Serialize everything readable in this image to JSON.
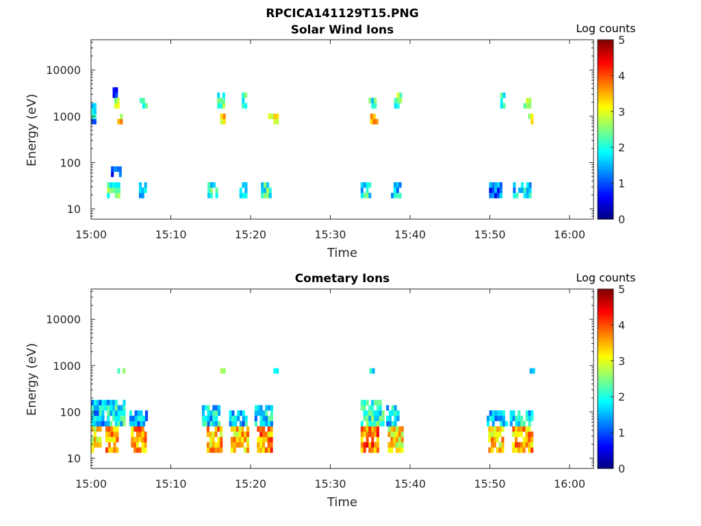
{
  "figure": {
    "suptitle": "RPCICA141129T15.PNG"
  },
  "chart_data": [
    {
      "type": "heatmap",
      "title": "Solar Wind Ions",
      "xlabel": "Time",
      "ylabel": "Energy (eV)",
      "x_ticks": [
        "15:00",
        "15:10",
        "15:20",
        "15:30",
        "15:40",
        "15:50",
        "16:00"
      ],
      "x_tick_minutes": [
        0,
        10,
        20,
        30,
        40,
        50,
        60
      ],
      "xlim_minutes": [
        0,
        63
      ],
      "yscale": "log",
      "ylim": [
        6,
        45000
      ],
      "y_ticks": [
        10,
        100,
        1000,
        10000
      ],
      "y_tick_labels": [
        "10",
        "100",
        "1000",
        "10000"
      ],
      "colorbar": {
        "label": "Log counts",
        "range": [
          0,
          5
        ],
        "ticks": [
          "0",
          "1",
          "2",
          "3",
          "4",
          "5"
        ],
        "colormap": "jet"
      },
      "background_color": "#ffffff",
      "blobs": [
        {
          "t": [
            0.0,
            0.6
          ],
          "e": [
            600,
            2000
          ],
          "v": 1.5
        },
        {
          "t": [
            2.0,
            3.5
          ],
          "e": [
            18,
            35
          ],
          "v": 2.0
        },
        {
          "t": [
            2.5,
            3.5
          ],
          "e": [
            45,
            80
          ],
          "v": 0.8
        },
        {
          "t": [
            2.7,
            3.3
          ],
          "e": [
            2500,
            4500
          ],
          "v": 1.0
        },
        {
          "t": [
            2.9,
            3.4
          ],
          "e": [
            1400,
            2400
          ],
          "v": 2.5
        },
        {
          "t": [
            3.3,
            3.9
          ],
          "e": [
            600,
            1100
          ],
          "v": 3.0
        },
        {
          "t": [
            6.0,
            6.8
          ],
          "e": [
            18,
            35
          ],
          "v": 1.2
        },
        {
          "t": [
            6.1,
            6.8
          ],
          "e": [
            1400,
            2600
          ],
          "v": 2.0
        },
        {
          "t": [
            14.6,
            15.8
          ],
          "e": [
            18,
            35
          ],
          "v": 1.8
        },
        {
          "t": [
            15.8,
            16.6
          ],
          "e": [
            1400,
            3500
          ],
          "v": 2.0
        },
        {
          "t": [
            16.2,
            16.8
          ],
          "e": [
            600,
            1100
          ],
          "v": 3.0
        },
        {
          "t": [
            18.6,
            19.5
          ],
          "e": [
            18,
            35
          ],
          "v": 1.5
        },
        {
          "t": [
            18.9,
            19.5
          ],
          "e": [
            1400,
            3000
          ],
          "v": 2.2
        },
        {
          "t": [
            21.3,
            22.4
          ],
          "e": [
            18,
            35
          ],
          "v": 2.0
        },
        {
          "t": [
            22.2,
            23.3
          ],
          "e": [
            600,
            1100
          ],
          "v": 3.2
        },
        {
          "t": [
            33.8,
            35.0
          ],
          "e": [
            18,
            35
          ],
          "v": 1.8
        },
        {
          "t": [
            34.8,
            35.5
          ],
          "e": [
            1400,
            2500
          ],
          "v": 2.0
        },
        {
          "t": [
            35.0,
            35.8
          ],
          "e": [
            600,
            1100
          ],
          "v": 3.2
        },
        {
          "t": [
            37.6,
            38.6
          ],
          "e": [
            18,
            35
          ],
          "v": 1.6
        },
        {
          "t": [
            38.0,
            38.9
          ],
          "e": [
            1400,
            3000
          ],
          "v": 2.2
        },
        {
          "t": [
            49.9,
            51.4
          ],
          "e": [
            18,
            35
          ],
          "v": 1.0
        },
        {
          "t": [
            51.3,
            51.8
          ],
          "e": [
            1400,
            3500
          ],
          "v": 2.0
        },
        {
          "t": [
            52.9,
            55.0
          ],
          "e": [
            18,
            35
          ],
          "v": 1.6
        },
        {
          "t": [
            54.2,
            55.0
          ],
          "e": [
            1400,
            2600
          ],
          "v": 2.5
        },
        {
          "t": [
            54.8,
            55.4
          ],
          "e": [
            600,
            1100
          ],
          "v": 2.8
        }
      ]
    },
    {
      "type": "heatmap",
      "title": "Cometary Ions",
      "xlabel": "Time",
      "ylabel": "Energy (eV)",
      "x_ticks": [
        "15:00",
        "15:10",
        "15:20",
        "15:30",
        "15:40",
        "15:50",
        "16:00"
      ],
      "x_tick_minutes": [
        0,
        10,
        20,
        30,
        40,
        50,
        60
      ],
      "xlim_minutes": [
        0,
        63
      ],
      "yscale": "log",
      "ylim": [
        6,
        45000
      ],
      "y_ticks": [
        10,
        100,
        1000,
        10000
      ],
      "y_tick_labels": [
        "10",
        "100",
        "1000",
        "10000"
      ],
      "colorbar": {
        "label": "Log counts",
        "range": [
          0,
          5
        ],
        "ticks": [
          "0",
          "1",
          "2",
          "3",
          "4",
          "5"
        ],
        "colormap": "jet"
      },
      "background_color": "#ffffff",
      "blobs": [
        {
          "t": [
            0.0,
            1.0
          ],
          "e": [
            15,
            45
          ],
          "v": 3.0
        },
        {
          "t": [
            0.0,
            2.0
          ],
          "e": [
            50,
            160
          ],
          "v": 1.5
        },
        {
          "t": [
            1.8,
            3.2
          ],
          "e": [
            15,
            45
          ],
          "v": 3.5
        },
        {
          "t": [
            2.0,
            4.0
          ],
          "e": [
            50,
            160
          ],
          "v": 1.8
        },
        {
          "t": [
            3.3,
            4.0
          ],
          "e": [
            700,
            1000
          ],
          "v": 2.0
        },
        {
          "t": [
            5.0,
            6.8
          ],
          "e": [
            15,
            45
          ],
          "v": 3.5
        },
        {
          "t": [
            4.8,
            6.8
          ],
          "e": [
            50,
            100
          ],
          "v": 1.3
        },
        {
          "t": [
            14.5,
            16.2
          ],
          "e": [
            15,
            45
          ],
          "v": 3.3
        },
        {
          "t": [
            13.9,
            16.0
          ],
          "e": [
            50,
            130
          ],
          "v": 1.6
        },
        {
          "t": [
            16.2,
            16.8
          ],
          "e": [
            700,
            1000
          ],
          "v": 2.0
        },
        {
          "t": [
            17.5,
            19.6
          ],
          "e": [
            15,
            45
          ],
          "v": 3.2
        },
        {
          "t": [
            17.3,
            19.3
          ],
          "e": [
            50,
            120
          ],
          "v": 1.5
        },
        {
          "t": [
            20.8,
            22.7
          ],
          "e": [
            15,
            45
          ],
          "v": 3.5
        },
        {
          "t": [
            20.5,
            22.7
          ],
          "e": [
            50,
            130
          ],
          "v": 1.6
        },
        {
          "t": [
            22.2,
            23.4
          ],
          "e": [
            700,
            1000
          ],
          "v": 2.2
        },
        {
          "t": [
            33.8,
            36.0
          ],
          "e": [
            15,
            45
          ],
          "v": 3.7
        },
        {
          "t": [
            33.8,
            36.5
          ],
          "e": [
            50,
            160
          ],
          "v": 2.0
        },
        {
          "t": [
            34.9,
            35.5
          ],
          "e": [
            700,
            1000
          ],
          "v": 1.5
        },
        {
          "t": [
            37.2,
            39.0
          ],
          "e": [
            15,
            45
          ],
          "v": 3.0
        },
        {
          "t": [
            37.0,
            38.5
          ],
          "e": [
            50,
            130
          ],
          "v": 1.5
        },
        {
          "t": [
            49.8,
            51.6
          ],
          "e": [
            15,
            45
          ],
          "v": 3.2
        },
        {
          "t": [
            49.6,
            52.0
          ],
          "e": [
            50,
            110
          ],
          "v": 1.5
        },
        {
          "t": [
            52.8,
            55.2
          ],
          "e": [
            15,
            45
          ],
          "v": 3.4
        },
        {
          "t": [
            52.5,
            55.4
          ],
          "e": [
            50,
            120
          ],
          "v": 1.7
        },
        {
          "t": [
            55.0,
            55.5
          ],
          "e": [
            700,
            1000
          ],
          "v": 1.5
        }
      ]
    }
  ]
}
